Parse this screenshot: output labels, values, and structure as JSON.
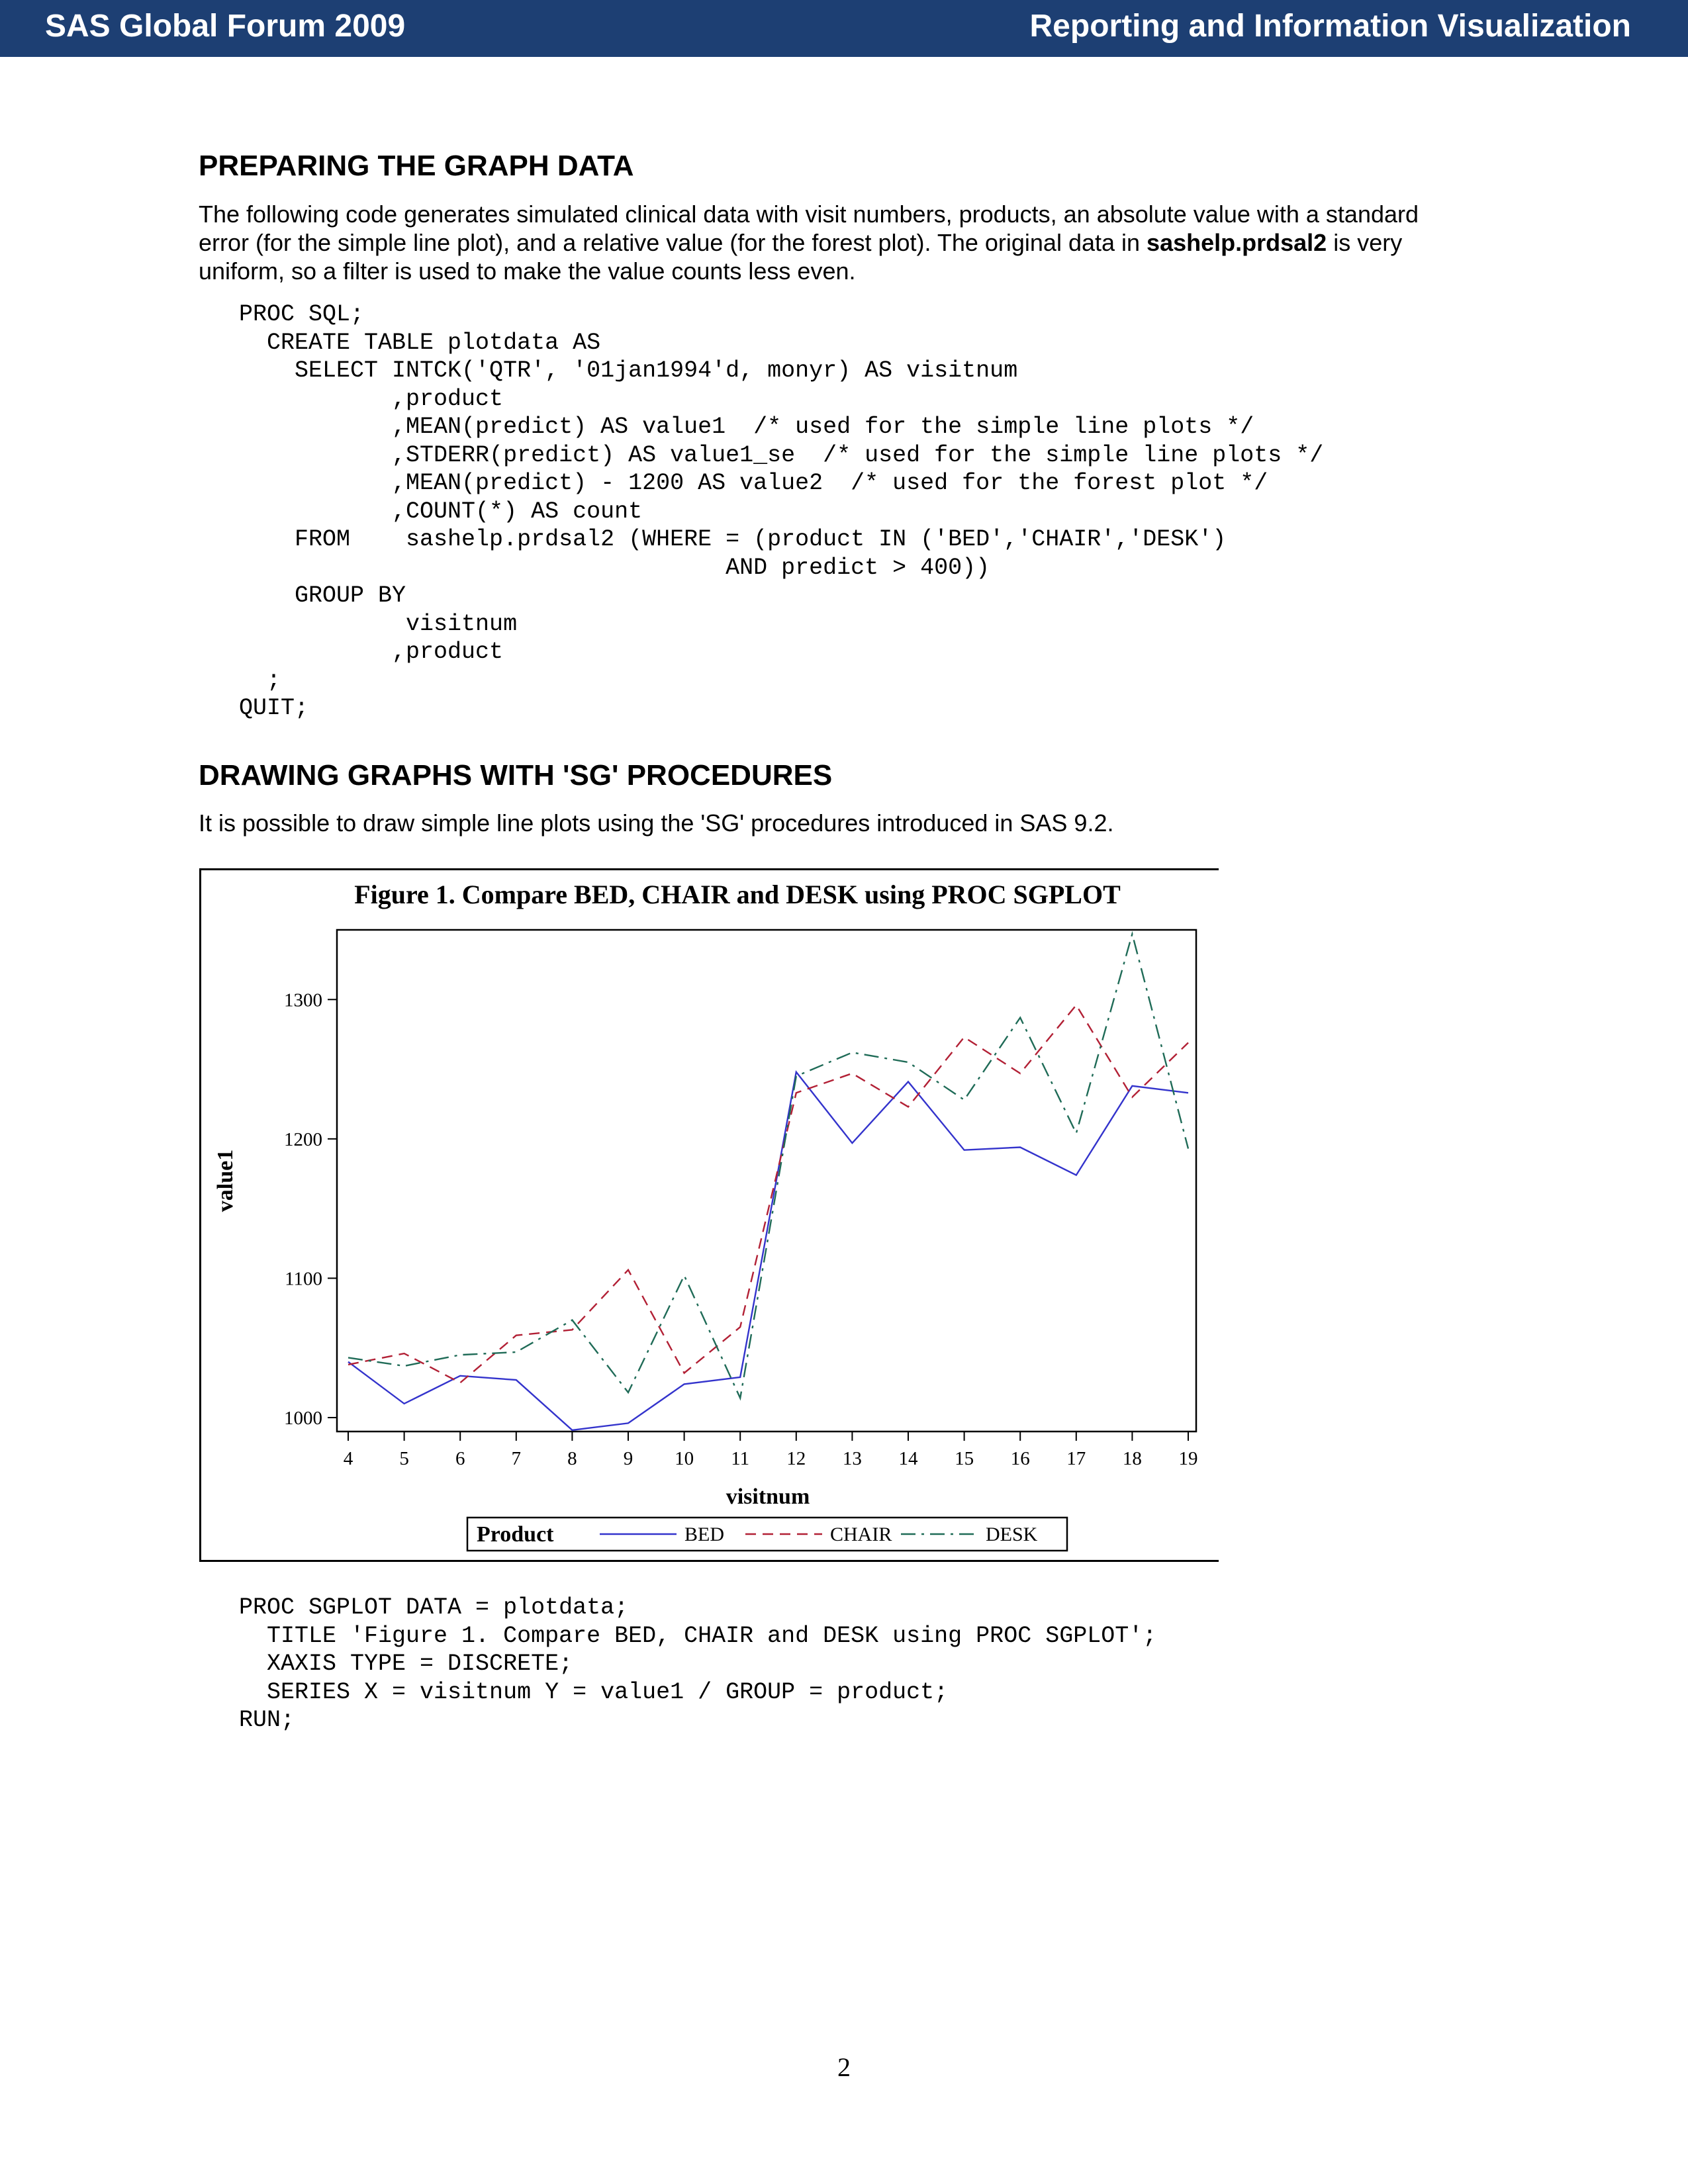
{
  "header": {
    "left": "SAS Global Forum 2009",
    "right": "Reporting and Information Visualization",
    "color": "#1d3f73"
  },
  "section1": {
    "title": "PREPARING THE GRAPH DATA",
    "para_lines": [
      "The following code generates simulated clinical data with visit numbers, products, an absolute value with a standard",
      "error (for the simple line plot), and a relative value (for the forest plot).  The original data in ",
      " is very",
      "uniform, so a filter is used to make the value counts less even."
    ],
    "bold_dataset": "sashelp.prdsal2",
    "code": "PROC SQL;\n  CREATE TABLE plotdata AS\n    SELECT INTCK('QTR', '01jan1994'd, monyr) AS visitnum\n           ,product\n           ,MEAN(predict) AS value1  /* used for the simple line plots */\n           ,STDERR(predict) AS value1_se  /* used for the simple line plots */\n           ,MEAN(predict) - 1200 AS value2  /* used for the forest plot */\n           ,COUNT(*) AS count\n    FROM    sashelp.prdsal2 (WHERE = (product IN ('BED','CHAIR','DESK')\n                                   AND predict > 400))\n    GROUP BY\n            visitnum\n           ,product\n  ;\nQUIT;"
  },
  "section2": {
    "title": "DRAWING GRAPHS WITH 'SG' PROCEDURES",
    "para": "It is possible to draw simple line plots using the 'SG' procedures introduced in SAS 9.2.",
    "code": "PROC SGPLOT DATA = plotdata;\n  TITLE 'Figure 1. Compare BED, CHAIR and DESK using PROC SGPLOT';\n  XAXIS TYPE = DISCRETE;\n  SERIES X = visitnum Y = value1 / GROUP = product;\nRUN;"
  },
  "chart_data": {
    "type": "line",
    "title": "Figure 1. Compare BED, CHAIR and DESK using PROC SGPLOT",
    "xlabel": "visitnum",
    "ylabel": "value1",
    "x": [
      4,
      5,
      6,
      7,
      8,
      9,
      10,
      11,
      12,
      13,
      14,
      15,
      16,
      17,
      18,
      19
    ],
    "xticks": [
      "4",
      "5",
      "6",
      "7",
      "8",
      "9",
      "10",
      "11",
      "12",
      "13",
      "14",
      "15",
      "16",
      "17",
      "18",
      "19"
    ],
    "yticks": [
      1000,
      1100,
      1200,
      1300
    ],
    "ytick_labels": [
      "1000",
      "1100",
      "1200",
      "1300"
    ],
    "ylim": [
      990,
      1350
    ],
    "grid": false,
    "legend": {
      "title": "Product",
      "placement": "bottom"
    },
    "series": [
      {
        "name": "BED",
        "color": "#3333cc",
        "dash": "solid",
        "values": [
          1040,
          1010,
          1030,
          1027,
          991,
          996,
          1024,
          1029,
          1248,
          1197,
          1241,
          1192,
          1194,
          1174,
          1238,
          1233
        ]
      },
      {
        "name": "CHAIR",
        "color": "#b22035",
        "dash": "dashed",
        "values": [
          1038,
          1046,
          1025,
          1059,
          1063,
          1106,
          1032,
          1065,
          1233,
          1247,
          1223,
          1273,
          1247,
          1296,
          1230,
          1269
        ]
      },
      {
        "name": "DESK",
        "color": "#1f6b57",
        "dash": "dashdot",
        "values": [
          1043,
          1037,
          1045,
          1047,
          1070,
          1018,
          1102,
          1014,
          1245,
          1262,
          1255,
          1228,
          1287,
          1204,
          1347,
          1193
        ]
      }
    ]
  },
  "page": {
    "number": "2"
  }
}
